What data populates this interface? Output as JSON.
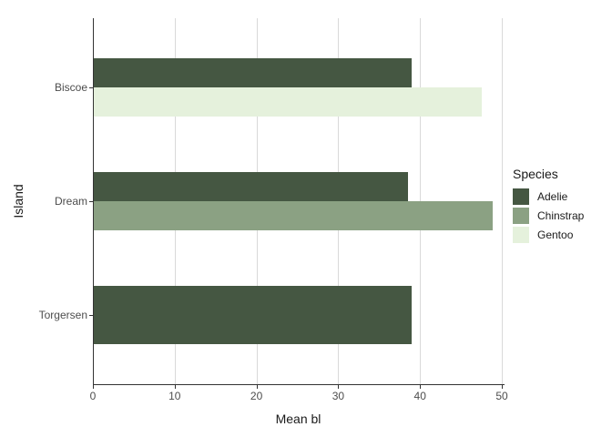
{
  "chart_data": {
    "type": "bar",
    "orientation": "horizontal",
    "title": "",
    "xlabel": "Mean bl",
    "ylabel": "Island",
    "categories": [
      "Biscoe",
      "Dream",
      "Torgersen"
    ],
    "series": [
      {
        "name": "Adelie",
        "color": "#455742",
        "values": [
          38.98,
          38.5,
          38.95
        ]
      },
      {
        "name": "Chinstrap",
        "color": "#8ba183",
        "values": [
          null,
          48.83,
          null
        ]
      },
      {
        "name": "Gentoo",
        "color": "#e5f1dc",
        "values": [
          47.5,
          null,
          null
        ]
      }
    ],
    "xlim": [
      0,
      50.22
    ],
    "xticks": [
      0,
      10,
      20,
      30,
      40,
      50
    ],
    "grid": "vertical-only",
    "legend": {
      "title": "Species",
      "position": "right",
      "entries": [
        "Adelie",
        "Chinstrap",
        "Gentoo"
      ]
    },
    "style": {
      "background": "#ffffff",
      "gridline_color": "#d9d9d9",
      "axis_color": "#333333",
      "tick_text_color": "#4d4d4d",
      "title_text_color": "#1a1a1a"
    }
  }
}
